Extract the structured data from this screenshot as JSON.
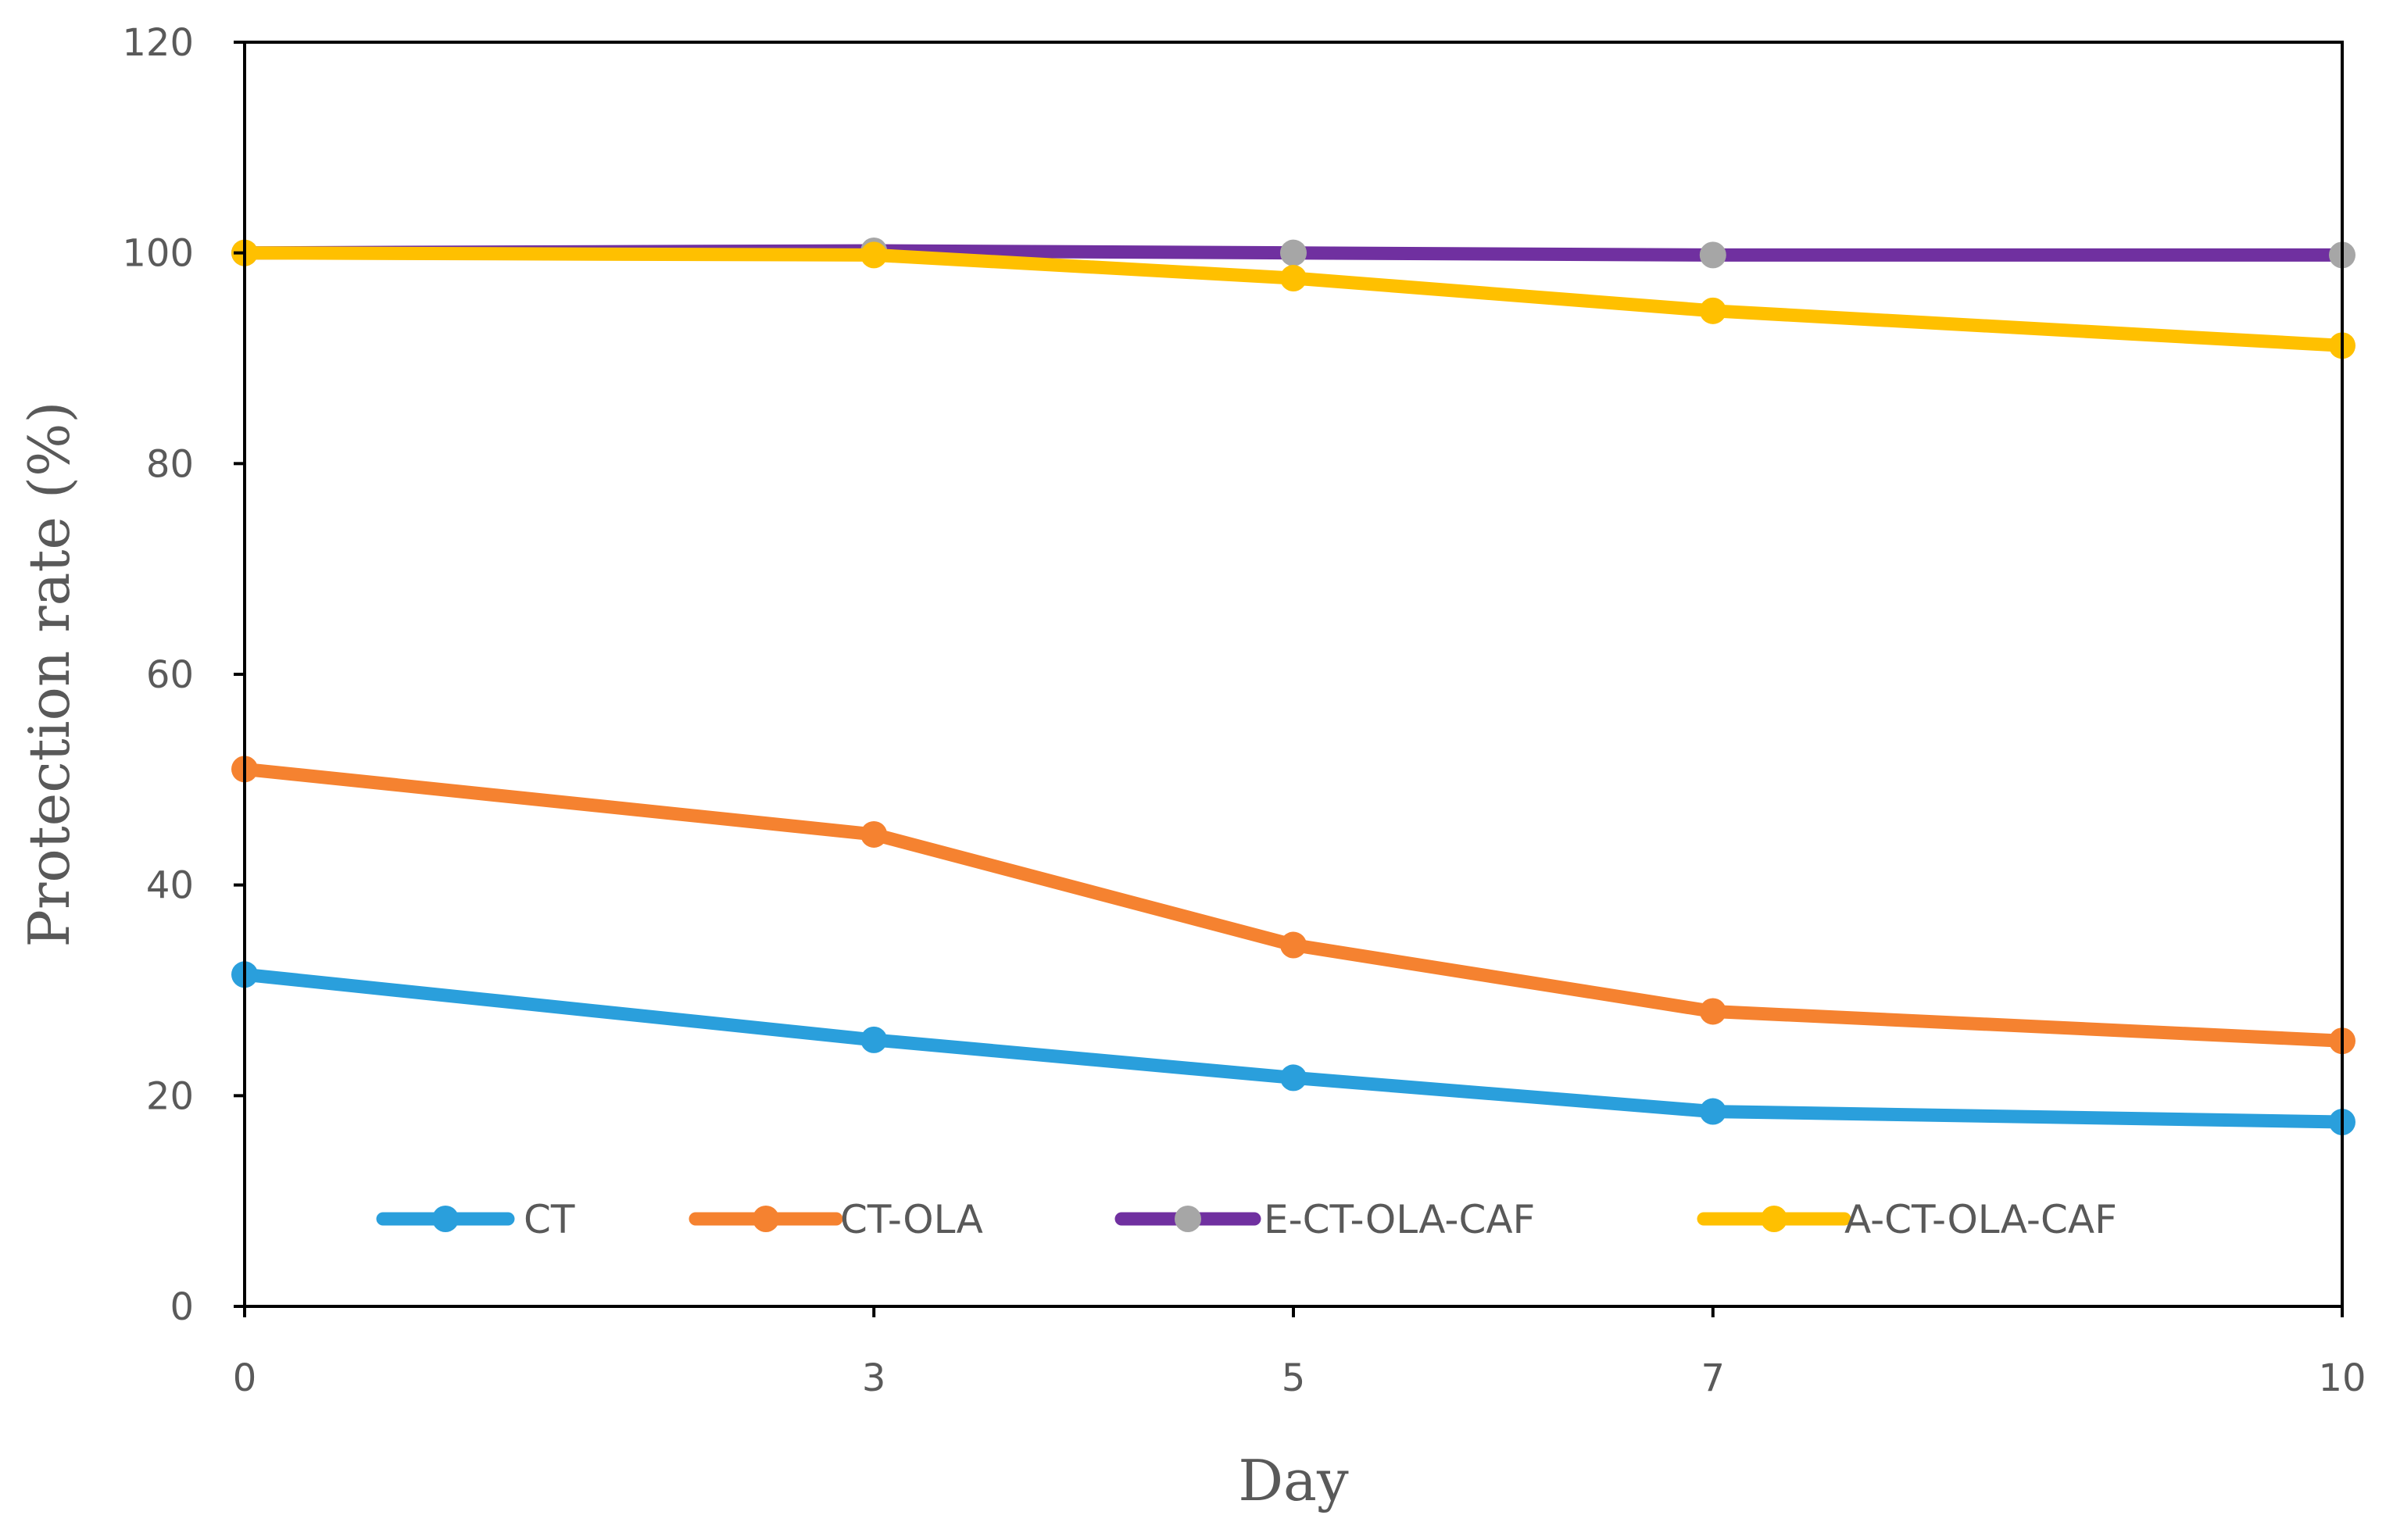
{
  "chart_data": {
    "type": "line",
    "title": "",
    "xlabel": "Day",
    "ylabel": "Protection rate (%)",
    "x": [
      0,
      3,
      5,
      7,
      10
    ],
    "x_tick_labels": [
      "0",
      "3",
      "5",
      "7",
      "10"
    ],
    "xlim": [
      0,
      10
    ],
    "ylim": [
      0,
      120
    ],
    "y_ticks": [
      0,
      20,
      40,
      60,
      80,
      100,
      120
    ],
    "y_tick_labels": [
      "0",
      "20",
      "40",
      "60",
      "80",
      "100",
      "120"
    ],
    "grid": false,
    "legend_position": "bottom-inside",
    "series": [
      {
        "name": "CT",
        "values": [
          31.5,
          25.3,
          21.7,
          18.5,
          17.5
        ],
        "line_color": "#2a9fdc",
        "marker_color": "#2a9fdc"
      },
      {
        "name": "CT-OLA",
        "values": [
          51.0,
          44.8,
          34.3,
          28.0,
          25.2
        ],
        "line_color": "#f58230",
        "marker_color": "#f58230"
      },
      {
        "name": "E-CT-OLA-CAF",
        "values": [
          100.0,
          100.2,
          100.0,
          99.8,
          99.8
        ],
        "line_color": "#7030a0",
        "marker_color": "#a6a6a6"
      },
      {
        "name": "A-CT-OLA-CAF",
        "values": [
          100.0,
          99.8,
          97.6,
          94.5,
          91.2
        ],
        "line_color": "#ffc000",
        "marker_color": "#ffc000"
      }
    ]
  }
}
